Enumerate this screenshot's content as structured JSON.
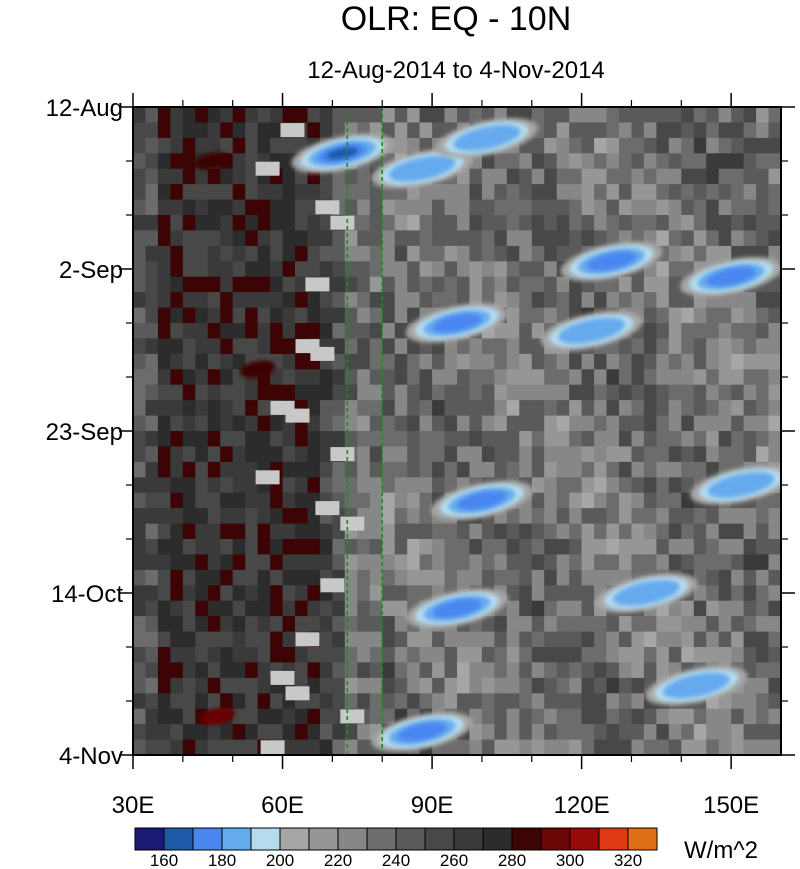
{
  "chart_data": {
    "type": "heatmap",
    "title": "OLR: EQ - 10N",
    "subtitle": "12-Aug-2014 to 4-Nov-2014",
    "x_axis": {
      "range": [
        30,
        160
      ],
      "ticks": [
        30,
        60,
        90,
        120,
        150
      ],
      "tick_labels": [
        "30E",
        "60E",
        "90E",
        "120E",
        "150E"
      ]
    },
    "y_axis": {
      "range": [
        "2014-08-12",
        "2014-11-04"
      ],
      "ticks": [
        "2014-08-12",
        "2014-09-02",
        "2014-09-23",
        "2014-10-14",
        "2014-11-04"
      ],
      "tick_labels": [
        "12-Aug",
        "2-Sep",
        "23-Sep",
        "14-Oct",
        "4-Nov"
      ]
    },
    "reference_lines_lon": [
      73,
      80
    ],
    "colorbar": {
      "units": "W/m^2",
      "levels": [
        160,
        170,
        180,
        190,
        200,
        210,
        220,
        230,
        240,
        250,
        260,
        270,
        280,
        290,
        300,
        310,
        320
      ],
      "labels": [
        "160",
        "180",
        "200",
        "220",
        "240",
        "260",
        "280",
        "300",
        "320"
      ],
      "colors": [
        "#1a1a72",
        "#1e5aa8",
        "#4a86f0",
        "#66aaee",
        "#b4dcee",
        "#a6a6a6",
        "#969696",
        "#878787",
        "#6c6c6c",
        "#5a5a5a",
        "#484848",
        "#3a3a3a",
        "#2c2c2c",
        "#3c0404",
        "#6a0606",
        "#960a0a",
        "#e03a14",
        "#e07018"
      ]
    },
    "missing_color": "#c8c8c8",
    "features": {
      "western_band_lon": [
        35,
        65
      ],
      "western_band_value": 270,
      "eastern_background_value": 235,
      "convective_blobs": [
        {
          "lon": 72,
          "date": "2014-08-18",
          "value": 165
        },
        {
          "lon": 88,
          "date": "2014-08-20",
          "value": 185
        },
        {
          "lon": 101,
          "date": "2014-08-16",
          "value": 180
        },
        {
          "lon": 126,
          "date": "2014-09-01",
          "value": 170
        },
        {
          "lon": 150,
          "date": "2014-09-03",
          "value": 170
        },
        {
          "lon": 95,
          "date": "2014-09-09",
          "value": 175
        },
        {
          "lon": 122,
          "date": "2014-09-10",
          "value": 185
        },
        {
          "lon": 100,
          "date": "2014-10-02",
          "value": 175
        },
        {
          "lon": 152,
          "date": "2014-09-30",
          "value": 180
        },
        {
          "lon": 95,
          "date": "2014-10-16",
          "value": 175
        },
        {
          "lon": 133,
          "date": "2014-10-14",
          "value": 185
        },
        {
          "lon": 88,
          "date": "2014-11-01",
          "value": 175
        },
        {
          "lon": 143,
          "date": "2014-10-26",
          "value": 180
        }
      ],
      "warm_spots": [
        {
          "lon": 46,
          "date": "2014-08-19",
          "value": 285
        },
        {
          "lon": 55,
          "date": "2014-09-15",
          "value": 285
        },
        {
          "lon": 47,
          "date": "2014-10-30",
          "value": 290
        }
      ]
    }
  }
}
